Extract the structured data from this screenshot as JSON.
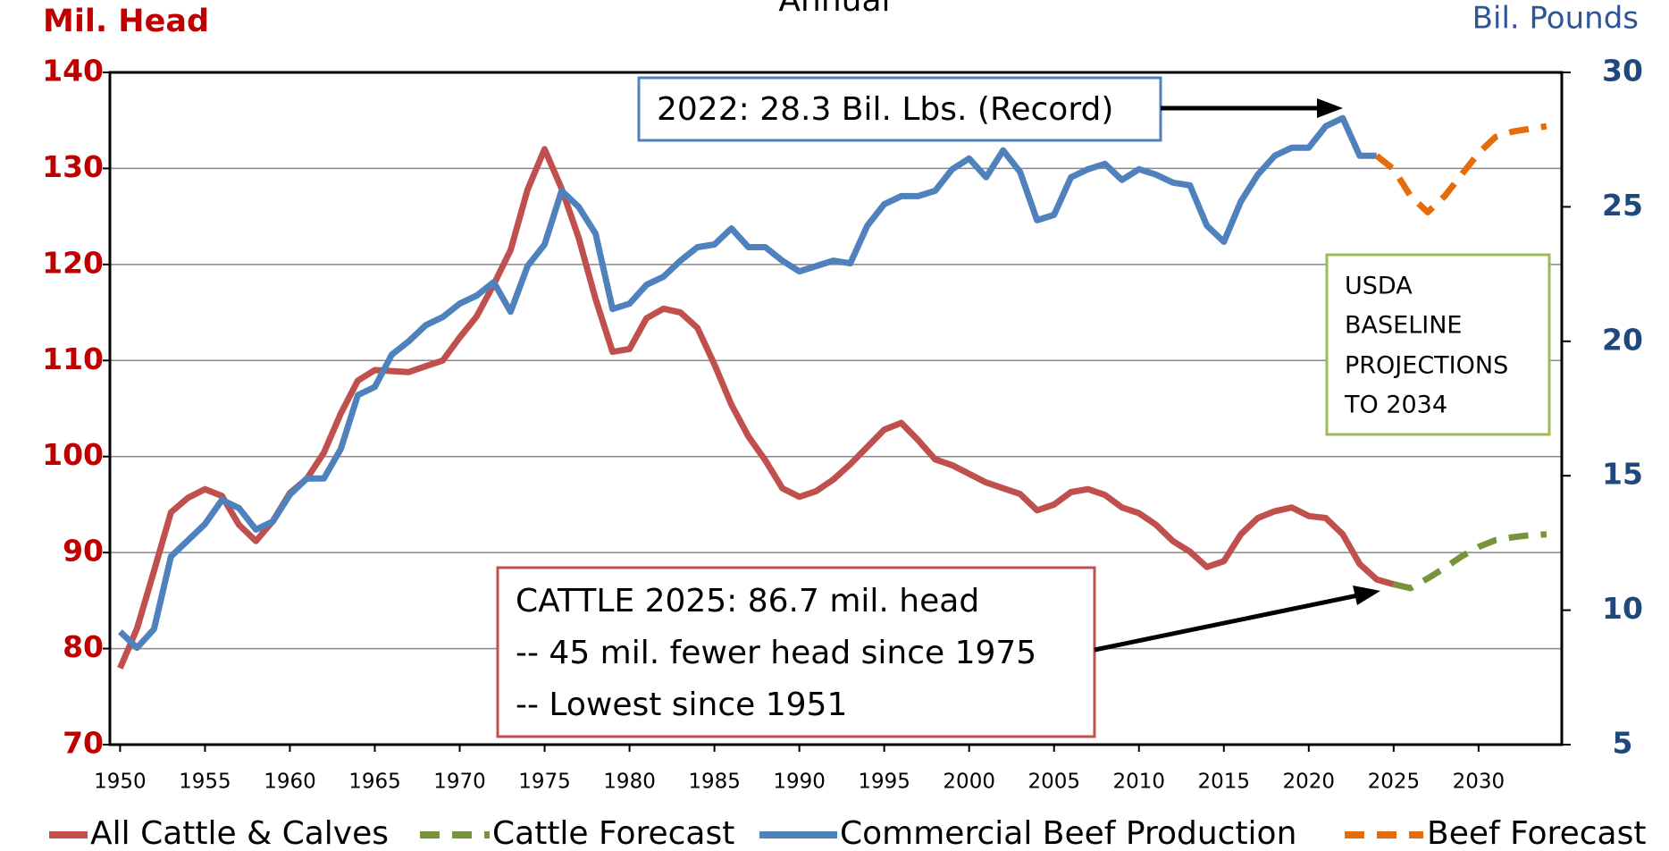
{
  "chart_data": {
    "type": "line",
    "title": "Annual",
    "y_label": "Mil. Head",
    "y2_label": "Bil. Pounds",
    "x": [
      1950,
      1951,
      1952,
      1953,
      1954,
      1955,
      1956,
      1957,
      1958,
      1959,
      1960,
      1961,
      1962,
      1963,
      1964,
      1965,
      1966,
      1967,
      1968,
      1969,
      1970,
      1971,
      1972,
      1973,
      1974,
      1975,
      1976,
      1977,
      1978,
      1979,
      1980,
      1981,
      1982,
      1983,
      1984,
      1985,
      1986,
      1987,
      1988,
      1989,
      1990,
      1991,
      1992,
      1993,
      1994,
      1995,
      1996,
      1997,
      1998,
      1999,
      2000,
      2001,
      2002,
      2003,
      2004,
      2005,
      2006,
      2007,
      2008,
      2009,
      2010,
      2011,
      2012,
      2013,
      2014,
      2015,
      2016,
      2017,
      2018,
      2019,
      2020,
      2021,
      2022,
      2023,
      2024,
      2025,
      2026,
      2027,
      2028,
      2029,
      2030,
      2031,
      2032,
      2033,
      2034
    ],
    "xlim": [
      1949.4,
      2034.9
    ],
    "xticks": [
      1950,
      1955,
      1960,
      1965,
      1970,
      1975,
      1980,
      1985,
      1990,
      1995,
      2000,
      2005,
      2010,
      2015,
      2020,
      2025,
      2030
    ],
    "ylim": [
      70,
      140
    ],
    "yticks": [
      70,
      80,
      90,
      100,
      110,
      120,
      130,
      140
    ],
    "y2lim": [
      5,
      30
    ],
    "y2ticks": [
      5,
      10,
      15,
      20,
      25,
      30
    ],
    "grid": true,
    "series": [
      {
        "name": "All Cattle & Calves",
        "color": "#c0504d",
        "dashed": false,
        "values": [
          77.96,
          82.1,
          88.1,
          94.2,
          95.7,
          96.6,
          95.9,
          92.9,
          91.2,
          93.3,
          96.2,
          97.7,
          100.4,
          104.5,
          107.9,
          109.0,
          108.9,
          108.8,
          109.4,
          110.0,
          112.4,
          114.6,
          117.9,
          121.5,
          127.8,
          132.0,
          127.9,
          122.8,
          116.4,
          110.9,
          111.2,
          114.4,
          115.4,
          115.0,
          113.4,
          109.6,
          105.4,
          102.1,
          99.6,
          96.7,
          95.8,
          96.4,
          97.6,
          99.2,
          101.0,
          102.8,
          103.5,
          101.7,
          99.7,
          99.1,
          98.2,
          97.3,
          96.7,
          96.1,
          94.4,
          95.0,
          96.3,
          96.6,
          96.0,
          94.7,
          94.1,
          92.9,
          91.2,
          90.1,
          88.5,
          89.1,
          91.9,
          93.6,
          94.3,
          94.7,
          93.8,
          93.6,
          91.9,
          88.8,
          87.2,
          86.7,
          null,
          null,
          null,
          null,
          null,
          null,
          null,
          null,
          null
        ]
      },
      {
        "name": "Cattle Forecast",
        "color": "#77933c",
        "dashed": true,
        "values": [
          null,
          null,
          null,
          null,
          null,
          null,
          null,
          null,
          null,
          null,
          null,
          null,
          null,
          null,
          null,
          null,
          null,
          null,
          null,
          null,
          null,
          null,
          null,
          null,
          null,
          null,
          null,
          null,
          null,
          null,
          null,
          null,
          null,
          null,
          null,
          null,
          null,
          null,
          null,
          null,
          null,
          null,
          null,
          null,
          null,
          null,
          null,
          null,
          null,
          null,
          null,
          null,
          null,
          null,
          null,
          null,
          null,
          null,
          null,
          null,
          null,
          null,
          null,
          null,
          null,
          null,
          null,
          null,
          null,
          null,
          null,
          null,
          null,
          null,
          null,
          86.7,
          86.3,
          87.3,
          88.4,
          89.6,
          90.6,
          91.3,
          91.6,
          91.8,
          91.9
        ]
      },
      {
        "name": "Commercial Beef Production",
        "color": "#4f81bd",
        "dashed": false,
        "axis": "y2",
        "values": [
          9.2,
          8.6,
          9.3,
          12.0,
          12.6,
          13.2,
          14.1,
          13.8,
          13.0,
          13.3,
          14.3,
          14.9,
          14.9,
          16.0,
          18.0,
          18.3,
          19.5,
          20.0,
          20.6,
          20.9,
          21.4,
          21.7,
          22.2,
          21.1,
          22.8,
          23.6,
          25.6,
          25.0,
          24.0,
          21.2,
          21.4,
          22.1,
          22.4,
          23.0,
          23.5,
          23.6,
          24.2,
          23.5,
          23.5,
          23.0,
          22.6,
          22.8,
          23.0,
          22.9,
          24.3,
          25.1,
          25.4,
          25.4,
          25.6,
          26.4,
          26.8,
          26.1,
          27.1,
          26.3,
          24.5,
          24.7,
          26.1,
          26.4,
          26.6,
          26.0,
          26.4,
          26.2,
          25.9,
          25.8,
          24.3,
          23.7,
          25.2,
          26.2,
          26.9,
          27.2,
          27.2,
          28.0,
          28.3,
          26.9,
          26.9,
          null,
          null,
          null,
          null,
          null,
          null,
          null,
          null,
          null,
          null
        ]
      },
      {
        "name": "Beef Forecast",
        "color": "#e46c0a",
        "dashed": true,
        "axis": "y2",
        "values": [
          null,
          null,
          null,
          null,
          null,
          null,
          null,
          null,
          null,
          null,
          null,
          null,
          null,
          null,
          null,
          null,
          null,
          null,
          null,
          null,
          null,
          null,
          null,
          null,
          null,
          null,
          null,
          null,
          null,
          null,
          null,
          null,
          null,
          null,
          null,
          null,
          null,
          null,
          null,
          null,
          null,
          null,
          null,
          null,
          null,
          null,
          null,
          null,
          null,
          null,
          null,
          null,
          null,
          null,
          null,
          null,
          null,
          null,
          null,
          null,
          null,
          null,
          null,
          null,
          null,
          null,
          null,
          null,
          null,
          null,
          null,
          null,
          null,
          null,
          26.9,
          26.4,
          25.4,
          24.8,
          25.4,
          26.2,
          27.0,
          27.6,
          27.8,
          27.9,
          28.0
        ]
      }
    ],
    "annotations": {
      "record": "2022: 28.3 Bil. Lbs. (Record)",
      "cattle": [
        "CATTLE 2025: 86.7 mil. head",
        "-- 45 mil. fewer head since 1975",
        "-- Lowest since 1951"
      ],
      "usda": [
        "USDA",
        "BASELINE",
        "PROJECTIONS",
        "TO 2034"
      ]
    }
  }
}
